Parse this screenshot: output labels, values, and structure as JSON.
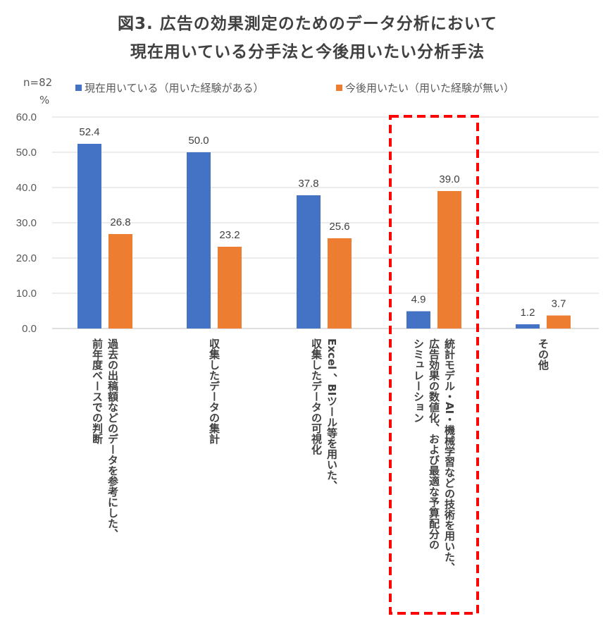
{
  "chart_data": {
    "type": "bar",
    "title_line1": "図3.  広告の効果測定のためのデータ分析において",
    "title_line2": "現在用いている分手法と今後用いたい分析手法",
    "n_label": "n=82",
    "unit_label": "%",
    "ylim": [
      0,
      60
    ],
    "yticks": [
      "0.0",
      "10.0",
      "20.0",
      "30.0",
      "40.0",
      "50.0",
      "60.0"
    ],
    "grid": true,
    "legend_position": "top",
    "categories": [
      [
        "過去の出稿額などのデータを参考にした、",
        "前年度ベースでの判断"
      ],
      [
        "収集したデータの集計"
      ],
      [
        "Excel 、BIツール等を用いた、",
        "収集したデータの可視化"
      ],
      [
        "統計モデル・AI・機械学習などの技術を用いた、",
        "広告効果の数値化、および最適な予算配分の",
        "シミュレーション"
      ],
      [
        "その他"
      ]
    ],
    "series": [
      {
        "name": "現在用いている（用いた経験がある）",
        "color": "#4472C4",
        "values": [
          52.4,
          50.0,
          37.8,
          4.9,
          1.2
        ]
      },
      {
        "name": "今後用いたい（用いた経験が無い）",
        "color": "#ED7D31",
        "values": [
          26.8,
          23.2,
          25.6,
          39.0,
          3.7
        ]
      }
    ],
    "highlight_category_index": 3,
    "highlight_color": "#FF0000"
  }
}
